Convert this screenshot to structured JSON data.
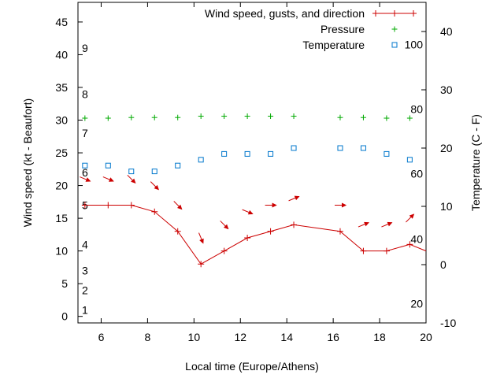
{
  "chart_data": {
    "type": "line",
    "title": "",
    "xlabel": "Local time (Europe/Athens)",
    "ylabel_left": "Wind speed (kt - Beaufort)",
    "ylabel_right": "Temperature (C - F)",
    "xlim": [
      5,
      20
    ],
    "ylim_left": [
      -1,
      48
    ],
    "ylim_right": [
      -10,
      45
    ],
    "grid": false,
    "legend_position": "top-right",
    "x_ticks": [
      6,
      8,
      10,
      12,
      14,
      16,
      18,
      20
    ],
    "y_left_ticks": [
      0,
      5,
      10,
      15,
      20,
      25,
      30,
      35,
      40,
      45
    ],
    "y_right_ticks": [
      -10,
      0,
      10,
      20,
      30,
      40
    ],
    "beaufort_labels": [
      {
        "value": 1,
        "kt": 1
      },
      {
        "value": 2,
        "kt": 4
      },
      {
        "value": 3,
        "kt": 7
      },
      {
        "value": 4,
        "kt": 11
      },
      {
        "value": 5,
        "kt": 17
      },
      {
        "value": 6,
        "kt": 22
      },
      {
        "value": 7,
        "kt": 28
      },
      {
        "value": 8,
        "kt": 34
      },
      {
        "value": 9,
        "kt": 41
      }
    ],
    "fahrenheit_labels": [
      {
        "value": 20,
        "c": -6.7
      },
      {
        "value": 40,
        "c": 4.4
      },
      {
        "value": 60,
        "c": 15.6
      },
      {
        "value": 80,
        "c": 26.7
      },
      {
        "value": 100,
        "c": 37.8
      }
    ],
    "series": [
      {
        "name": "Wind speed, gusts, and direction",
        "axis": "left",
        "color": "#cc0000",
        "x": [
          5.3,
          6.3,
          7.3,
          8.3,
          9.3,
          10.3,
          11.3,
          12.3,
          13.3,
          14.3,
          16.3,
          17.3,
          18.3,
          19.3,
          20
        ],
        "values": [
          17,
          17,
          17,
          16,
          13,
          8,
          10,
          12,
          13,
          14,
          13,
          10,
          10,
          11,
          10
        ]
      },
      {
        "name": "Pressure",
        "axis": "left",
        "color": "#00aa00",
        "x": [
          5.3,
          6.3,
          7.3,
          8.3,
          9.3,
          10.3,
          11.3,
          12.3,
          13.3,
          14.3,
          16.3,
          17.3,
          18.3,
          19.3
        ],
        "values": [
          30.3,
          30.3,
          30.4,
          30.4,
          30.4,
          30.6,
          30.6,
          30.6,
          30.6,
          30.6,
          30.4,
          30.4,
          30.3,
          30.3
        ]
      },
      {
        "name": "Temperature",
        "axis": "right",
        "color": "#0077cc",
        "x": [
          5.3,
          6.3,
          7.3,
          8.3,
          9.3,
          10.3,
          11.3,
          12.3,
          13.3,
          14.3,
          16.3,
          17.3,
          18.3,
          19.3
        ],
        "values": [
          17,
          17,
          16,
          16,
          17,
          18,
          19,
          19,
          19,
          20,
          20,
          20,
          19,
          18
        ]
      }
    ],
    "wind_direction_arrows": {
      "color": "#cc0000",
      "points": [
        {
          "x": 5.3,
          "y": 21.0,
          "dir": "east-southeast"
        },
        {
          "x": 6.3,
          "y": 21.0,
          "dir": "east-southeast"
        },
        {
          "x": 7.3,
          "y": 21.0,
          "dir": "southeast"
        },
        {
          "x": 8.3,
          "y": 20.0,
          "dir": "southeast"
        },
        {
          "x": 9.3,
          "y": 17.0,
          "dir": "southeast"
        },
        {
          "x": 10.3,
          "y": 12.0,
          "dir": "south-southeast"
        },
        {
          "x": 11.3,
          "y": 14.0,
          "dir": "southeast"
        },
        {
          "x": 12.3,
          "y": 16.0,
          "dir": "east-southeast"
        },
        {
          "x": 13.3,
          "y": 17.0,
          "dir": "east"
        },
        {
          "x": 14.3,
          "y": 18.0,
          "dir": "east-northeast"
        },
        {
          "x": 16.3,
          "y": 17.0,
          "dir": "east"
        },
        {
          "x": 17.3,
          "y": 14.0,
          "dir": "east-northeast"
        },
        {
          "x": 18.3,
          "y": 14.0,
          "dir": "east-northeast"
        },
        {
          "x": 19.3,
          "y": 15.0,
          "dir": "northeast"
        }
      ]
    }
  }
}
